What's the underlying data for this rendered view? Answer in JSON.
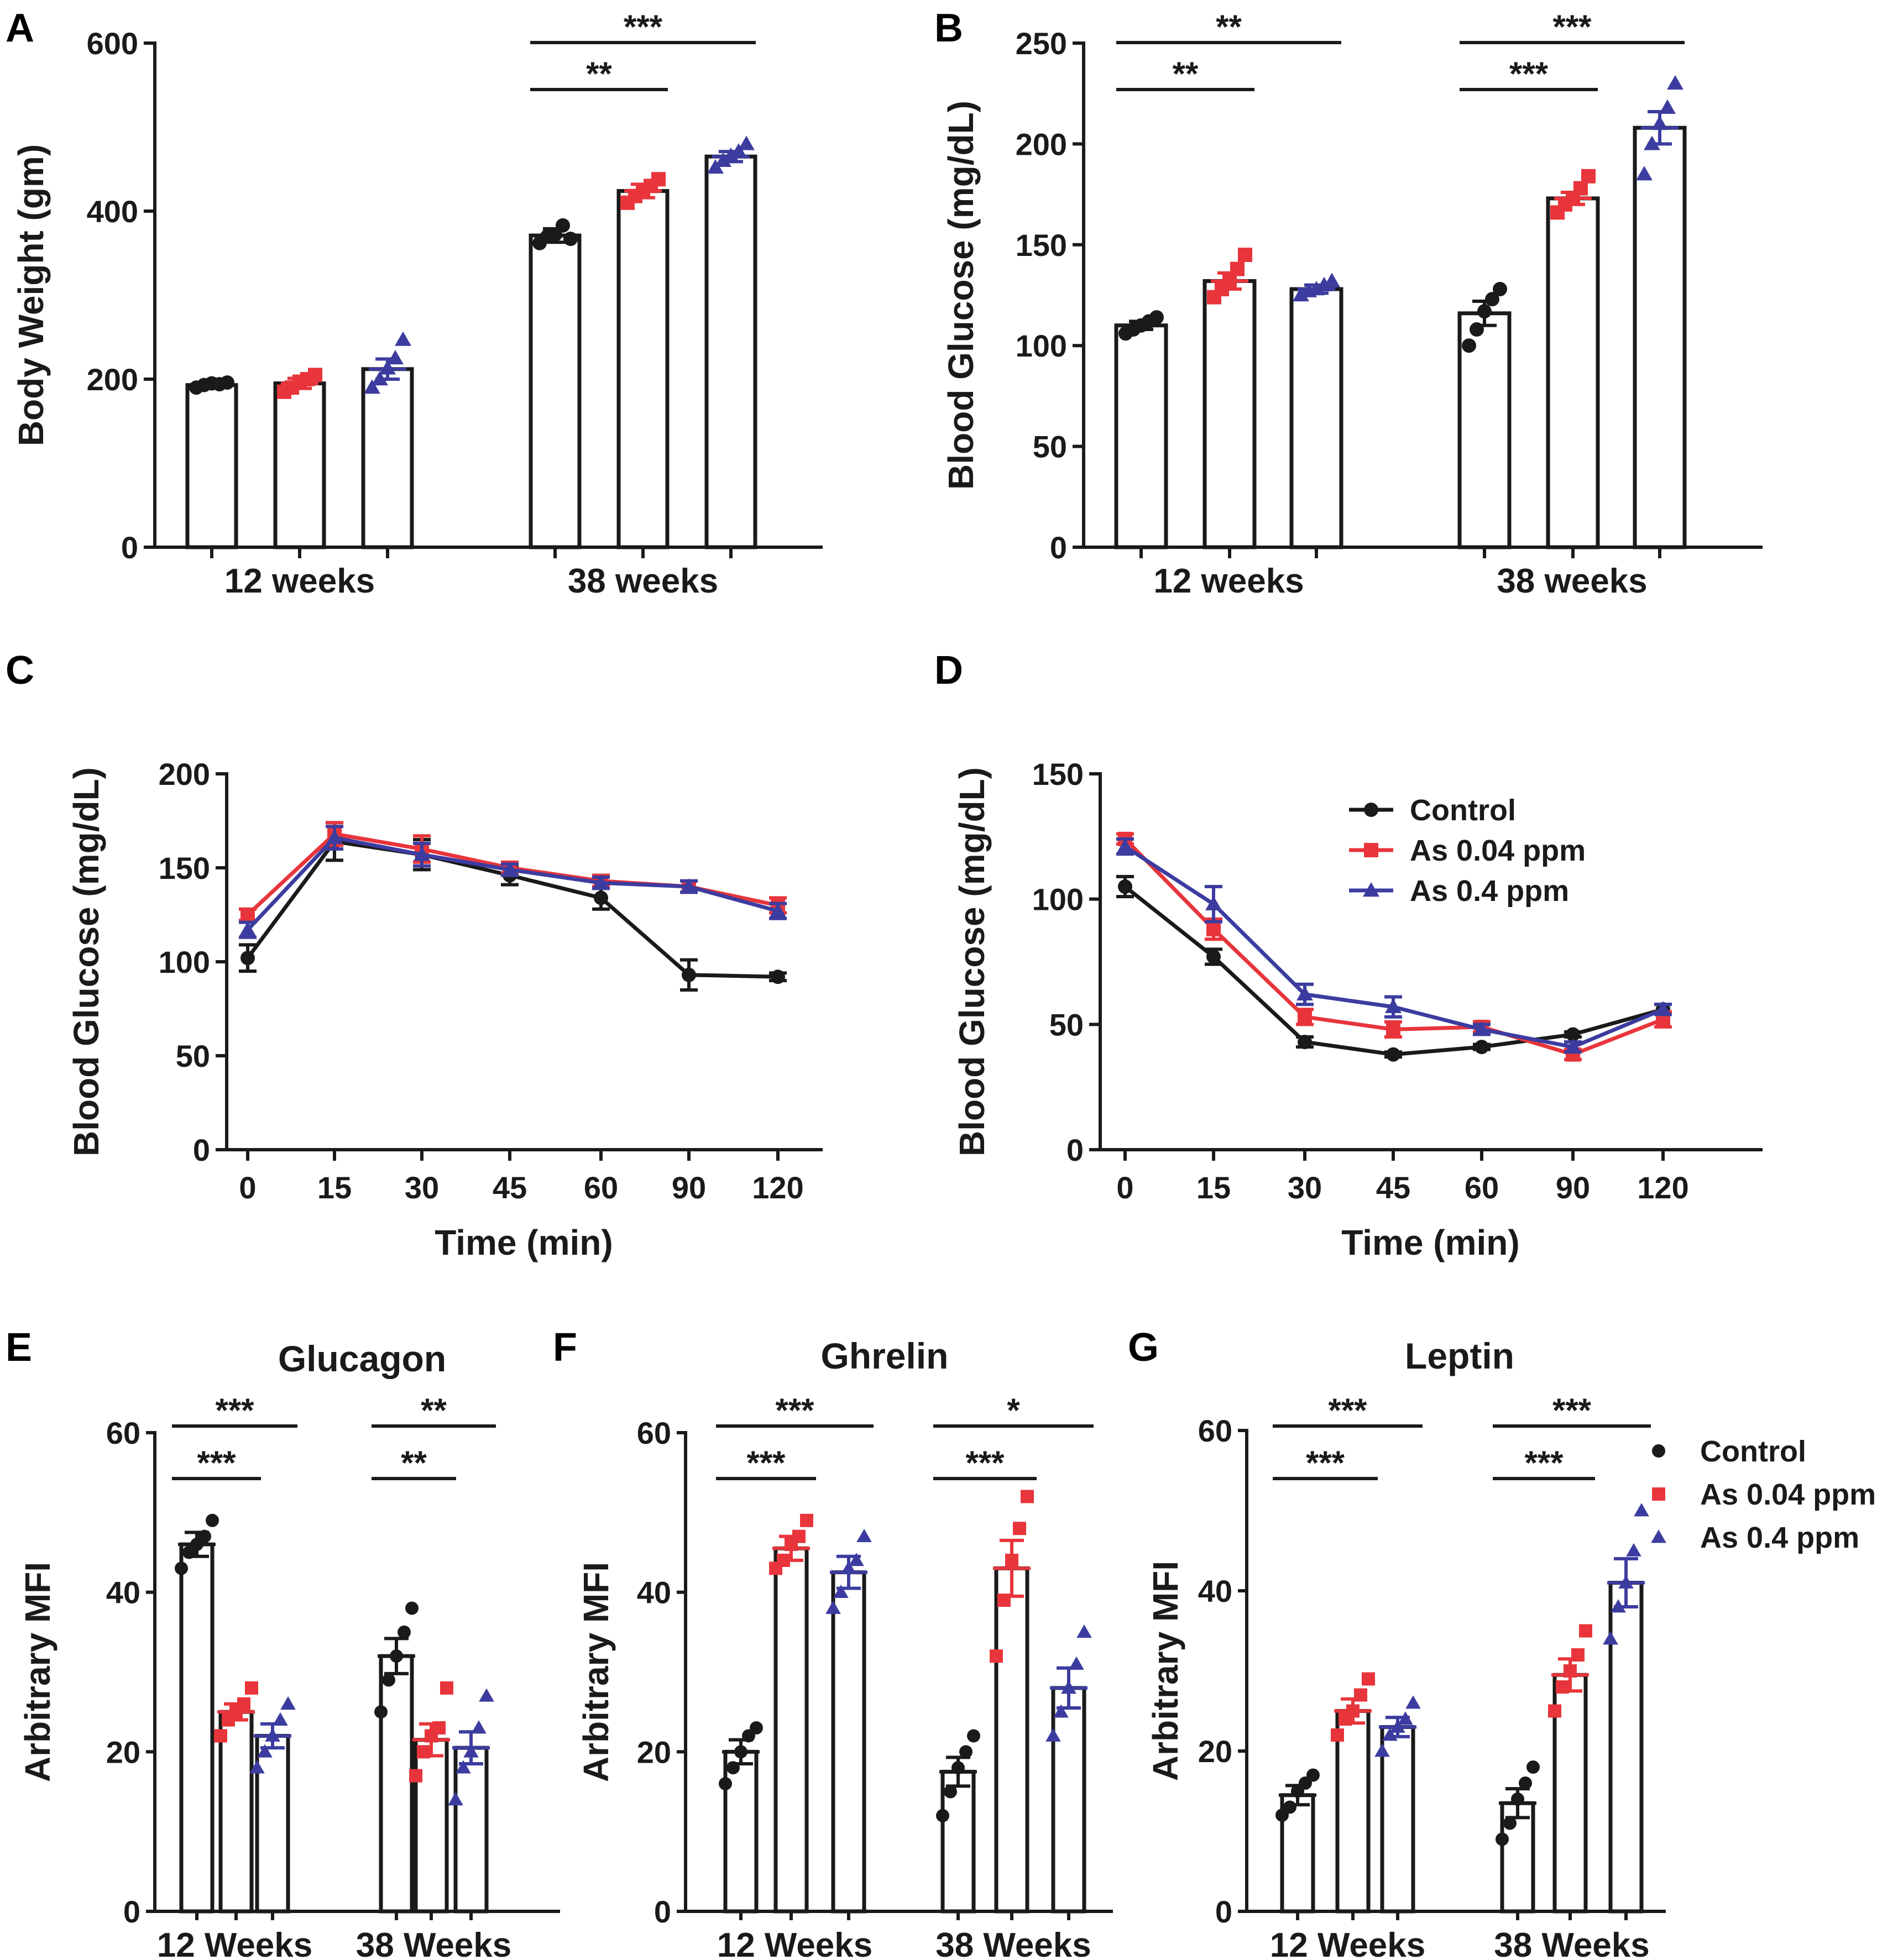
{
  "colors": {
    "control": "#1a1a1a",
    "low": "#e8353b",
    "high": "#3c3ca0"
  },
  "legend": {
    "entries": [
      {
        "key": "control",
        "label": "Control"
      },
      {
        "key": "low",
        "label": "As 0.04 ppm"
      },
      {
        "key": "high",
        "label": "As 0.4 ppm"
      }
    ]
  },
  "chart_data": [
    {
      "id": "A",
      "panel_label": "A",
      "type": "bar",
      "title": "",
      "ylabel": "Body Weight (gm)",
      "ylim": [
        0,
        600
      ],
      "yticks": [
        0,
        200,
        400,
        600
      ],
      "categories": [
        "12 weeks",
        "38 weeks"
      ],
      "series": [
        {
          "name": "Control",
          "key": "control",
          "values": [
            193,
            371
          ],
          "sem": [
            3,
            8
          ],
          "points": [
            [
              190,
              193,
              195,
              194,
              196
            ],
            [
              362,
              370,
              372,
              383,
              367
            ]
          ]
        },
        {
          "name": "As 0.04 ppm",
          "key": "low",
          "values": [
            195,
            424
          ],
          "sem": [
            6,
            8
          ],
          "points": [
            [
              185,
              190,
              197,
              200,
              205
            ],
            [
              410,
              418,
              424,
              430,
              438
            ]
          ]
        },
        {
          "name": "As 0.4 ppm",
          "key": "high",
          "values": [
            212,
            465
          ],
          "sem": [
            12,
            6
          ],
          "points": [
            [
              190,
              200,
              213,
              225,
              247
            ],
            [
              452,
              460,
              466,
              471,
              480
            ]
          ]
        }
      ],
      "significance": [
        {
          "group": 1,
          "from": 0,
          "to": 1,
          "text": "**"
        },
        {
          "group": 1,
          "from": 0,
          "to": 2,
          "text": "***"
        }
      ]
    },
    {
      "id": "B",
      "panel_label": "B",
      "type": "bar",
      "title": "",
      "ylabel": "Blood Glucose (mg/dL)",
      "ylim": [
        0,
        250
      ],
      "yticks": [
        0,
        50,
        100,
        150,
        200,
        250
      ],
      "categories": [
        "12 weeks",
        "38 weeks"
      ],
      "series": [
        {
          "name": "Control",
          "key": "control",
          "values": [
            110,
            116
          ],
          "sem": [
            2,
            6
          ],
          "points": [
            [
              106,
              108,
              110,
              112,
              114
            ],
            [
              100,
              108,
              117,
              123,
              128
            ]
          ]
        },
        {
          "name": "As 0.04 ppm",
          "key": "low",
          "values": [
            132,
            173
          ],
          "sem": [
            4,
            3
          ],
          "points": [
            [
              124,
              128,
              132,
              138,
              145
            ],
            [
              166,
              170,
              173,
              178,
              184
            ]
          ]
        },
        {
          "name": "As 0.4 ppm",
          "key": "high",
          "values": [
            128,
            208
          ],
          "sem": [
            2,
            8
          ],
          "points": [
            [
              125,
              127,
              128,
              130,
              132
            ],
            [
              185,
              200,
              210,
              218,
              230
            ]
          ]
        }
      ],
      "significance": [
        {
          "group": 0,
          "from": 0,
          "to": 1,
          "text": "**"
        },
        {
          "group": 0,
          "from": 0,
          "to": 2,
          "text": "**"
        },
        {
          "group": 1,
          "from": 0,
          "to": 1,
          "text": "***"
        },
        {
          "group": 1,
          "from": 0,
          "to": 2,
          "text": "***"
        }
      ]
    },
    {
      "id": "C",
      "panel_label": "C",
      "type": "line",
      "title": "",
      "ylabel": "Blood Glucose (mg/dL)",
      "xlabel": "Time (min)",
      "ylim": [
        0,
        200
      ],
      "yticks": [
        0,
        50,
        100,
        150,
        200
      ],
      "x": [
        "0",
        "15",
        "30",
        "45",
        "60",
        "90",
        "120"
      ],
      "series": [
        {
          "name": "Control",
          "key": "control",
          "marker": "circle",
          "values": [
            102,
            164,
            157,
            146,
            134,
            93,
            92
          ],
          "err": [
            7,
            10,
            8,
            5,
            6,
            8,
            2
          ]
        },
        {
          "name": "As 0.04 ppm",
          "key": "low",
          "marker": "square",
          "values": [
            125,
            168,
            160,
            150,
            143,
            140,
            130
          ],
          "err": [
            3,
            6,
            7,
            3,
            3,
            3,
            4
          ]
        },
        {
          "name": "As 0.4 ppm",
          "key": "high",
          "marker": "triangle",
          "values": [
            117,
            166,
            157,
            149,
            142,
            140,
            127
          ],
          "err": [
            4,
            6,
            6,
            3,
            3,
            3,
            4
          ]
        }
      ]
    },
    {
      "id": "D",
      "panel_label": "D",
      "type": "line",
      "title": "",
      "ylabel": "Blood Glucose (mg/dL)",
      "xlabel": "Time (min)",
      "ylim": [
        0,
        150
      ],
      "yticks": [
        0,
        50,
        100,
        150
      ],
      "x": [
        "0",
        "15",
        "30",
        "45",
        "60",
        "90",
        "120"
      ],
      "series": [
        {
          "name": "Control",
          "key": "control",
          "marker": "circle",
          "values": [
            105,
            77,
            43,
            38,
            41,
            46,
            56
          ],
          "err": [
            4,
            3,
            2,
            1,
            1,
            1,
            2
          ]
        },
        {
          "name": "As 0.04 ppm",
          "key": "low",
          "marker": "square",
          "values": [
            124,
            88,
            53,
            48,
            49,
            38,
            52
          ],
          "err": [
            2,
            4,
            3,
            3,
            2,
            2,
            3
          ]
        },
        {
          "name": "As 0.4 ppm",
          "key": "high",
          "marker": "triangle",
          "values": [
            121,
            98,
            62,
            57,
            48,
            41,
            56
          ],
          "err": [
            3,
            7,
            4,
            4,
            2,
            2,
            2
          ]
        }
      ]
    },
    {
      "id": "E",
      "panel_label": "E",
      "type": "bar",
      "title": "Glucagon",
      "ylabel": "Arbitrary MFI",
      "ylim": [
        0,
        60
      ],
      "yticks": [
        0,
        20,
        40,
        60
      ],
      "categories": [
        "12 Weeks",
        "38 Weeks"
      ],
      "series": [
        {
          "name": "Control",
          "key": "control",
          "values": [
            46,
            32
          ],
          "sem": [
            1.5,
            2.2
          ],
          "points": [
            [
              43,
              45,
              46,
              47,
              49
            ],
            [
              25,
              29,
              32,
              35,
              38
            ]
          ]
        },
        {
          "name": "As 0.04 ppm",
          "key": "low",
          "values": [
            25,
            21.5
          ],
          "sem": [
            1,
            2
          ],
          "points": [
            [
              22,
              24,
              25,
              26,
              28
            ],
            [
              17,
              20,
              22,
              23,
              28
            ]
          ]
        },
        {
          "name": "As 0.4 ppm",
          "key": "high",
          "values": [
            22,
            20.5
          ],
          "sem": [
            1.5,
            2
          ],
          "points": [
            [
              18,
              20,
              22,
              24,
              26
            ],
            [
              14,
              18,
              20,
              23,
              27
            ]
          ]
        }
      ],
      "significance": [
        {
          "group": 0,
          "from": 0,
          "to": 1,
          "text": "***"
        },
        {
          "group": 0,
          "from": 0,
          "to": 2,
          "text": "***"
        },
        {
          "group": 1,
          "from": 0,
          "to": 1,
          "text": "**"
        },
        {
          "group": 1,
          "from": 0,
          "to": 2,
          "text": "**"
        }
      ]
    },
    {
      "id": "F",
      "panel_label": "F",
      "type": "bar",
      "title": "Ghrelin",
      "ylabel": "Arbitrary MFI",
      "ylim": [
        0,
        60
      ],
      "yticks": [
        0,
        20,
        40,
        60
      ],
      "categories": [
        "12 Weeks",
        "38 Weeks"
      ],
      "series": [
        {
          "name": "Control",
          "key": "control",
          "values": [
            20,
            17.5
          ],
          "sem": [
            1.5,
            1.8
          ],
          "points": [
            [
              16,
              18,
              20,
              22,
              23
            ],
            [
              12,
              15,
              18,
              20,
              22
            ]
          ]
        },
        {
          "name": "As 0.04 ppm",
          "key": "low",
          "values": [
            45.5,
            43
          ],
          "sem": [
            1.5,
            3.5
          ],
          "points": [
            [
              43,
              44,
              46,
              47,
              49
            ],
            [
              32,
              39,
              44,
              48,
              52
            ]
          ]
        },
        {
          "name": "As 0.4 ppm",
          "key": "high",
          "values": [
            42.5,
            28
          ],
          "sem": [
            2,
            2.5
          ],
          "points": [
            [
              38,
              40,
              43,
              44,
              47
            ],
            [
              22,
              25,
              28,
              31,
              35
            ]
          ]
        }
      ],
      "significance": [
        {
          "group": 0,
          "from": 0,
          "to": 1,
          "text": "***"
        },
        {
          "group": 0,
          "from": 0,
          "to": 2,
          "text": "***"
        },
        {
          "group": 1,
          "from": 0,
          "to": 1,
          "text": "***"
        },
        {
          "group": 1,
          "from": 0,
          "to": 2,
          "text": "*"
        }
      ]
    },
    {
      "id": "G",
      "panel_label": "G",
      "type": "bar",
      "title": "Leptin",
      "ylabel": "Arbitrary MFI",
      "ylim": [
        0,
        60
      ],
      "yticks": [
        0,
        20,
        40,
        60
      ],
      "categories": [
        "12 Weeks",
        "38 Weeks"
      ],
      "series": [
        {
          "name": "Control",
          "key": "control",
          "values": [
            14.5,
            13.5
          ],
          "sem": [
            1.2,
            1.8
          ],
          "points": [
            [
              12,
              13,
              15,
              16,
              17
            ],
            [
              9,
              11,
              14,
              16,
              18
            ]
          ]
        },
        {
          "name": "As 0.04 ppm",
          "key": "low",
          "values": [
            25,
            29.5
          ],
          "sem": [
            1.5,
            2
          ],
          "points": [
            [
              22,
              24,
              25,
              27,
              29
            ],
            [
              25,
              28,
              30,
              32,
              35
            ]
          ]
        },
        {
          "name": "As 0.4 ppm",
          "key": "high",
          "values": [
            23,
            41
          ],
          "sem": [
            1.2,
            3
          ],
          "points": [
            [
              20,
              22,
              23,
              24,
              26
            ],
            [
              34,
              38,
              41,
              45,
              50
            ]
          ]
        }
      ],
      "significance": [
        {
          "group": 0,
          "from": 0,
          "to": 1,
          "text": "***"
        },
        {
          "group": 0,
          "from": 0,
          "to": 2,
          "text": "***"
        },
        {
          "group": 1,
          "from": 0,
          "to": 1,
          "text": "***"
        },
        {
          "group": 1,
          "from": 0,
          "to": 2,
          "text": "***"
        }
      ]
    }
  ]
}
